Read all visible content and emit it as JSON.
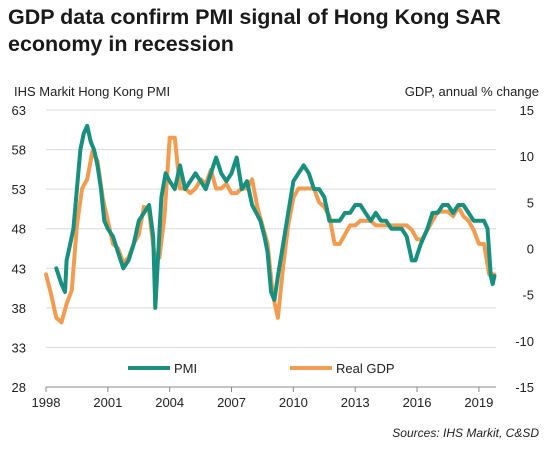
{
  "title": "GDP data confirm PMI signal of Hong Kong SAR economy in recession",
  "source": "Sources:  IHS Markit, C&SD",
  "colors": {
    "pmi": "#17907f",
    "gdp": "#f39c4f",
    "grid": "#d9d9d9",
    "axis": "#888888"
  },
  "chart_data": {
    "type": "line",
    "ylabel_left": "IHS Markit Hong Kong PMI",
    "ylabel_right": "GDP, annual % change",
    "xlim": [
      1998,
      2019.83
    ],
    "ylim_left": [
      28,
      63
    ],
    "ylim_right": [
      -15,
      15
    ],
    "x_ticks": [
      "1998",
      "2001",
      "2004",
      "2007",
      "2010",
      "2013",
      "2016",
      "2019"
    ],
    "y_ticks_left": [
      28,
      33,
      38,
      43,
      48,
      53,
      58,
      63
    ],
    "y_ticks_right": [
      -15,
      -10,
      -5,
      0,
      5,
      10,
      15
    ],
    "grid": "horizontal",
    "legend_position": "bottom-center",
    "series": [
      {
        "name": "PMI",
        "axis": "left",
        "x": [
          1998.5,
          1998.75,
          1998.92,
          1999.0,
          1999.17,
          1999.33,
          1999.5,
          1999.67,
          1999.83,
          2000.0,
          2000.17,
          2000.33,
          2000.5,
          2000.67,
          2000.83,
          2001.0,
          2001.25,
          2001.5,
          2001.75,
          2002.0,
          2002.25,
          2002.5,
          2002.75,
          2003.0,
          2003.2,
          2003.3,
          2003.45,
          2003.6,
          2003.8,
          2004.0,
          2004.25,
          2004.5,
          2004.75,
          2005.0,
          2005.25,
          2005.5,
          2005.75,
          2006.0,
          2006.25,
          2006.5,
          2006.75,
          2007.0,
          2007.25,
          2007.5,
          2007.75,
          2008.0,
          2008.2,
          2008.4,
          2008.6,
          2008.75,
          2008.92,
          2009.08,
          2009.25,
          2009.5,
          2009.75,
          2010.0,
          2010.25,
          2010.5,
          2010.75,
          2011.0,
          2011.25,
          2011.5,
          2011.75,
          2012.0,
          2012.25,
          2012.5,
          2012.75,
          2013.0,
          2013.25,
          2013.5,
          2013.75,
          2014.0,
          2014.25,
          2014.5,
          2014.75,
          2015.0,
          2015.25,
          2015.5,
          2015.75,
          2015.92,
          2016.17,
          2016.5,
          2016.75,
          2017.0,
          2017.25,
          2017.5,
          2017.75,
          2018.0,
          2018.25,
          2018.5,
          2018.75,
          2019.0,
          2019.25,
          2019.42,
          2019.58,
          2019.67,
          2019.75
        ],
        "values": [
          43,
          41,
          40,
          44,
          46,
          48,
          53,
          58,
          60,
          61,
          59,
          58,
          56,
          53,
          49,
          48,
          47,
          45,
          43,
          44,
          46,
          49,
          50,
          51,
          47,
          38,
          45,
          52,
          55,
          54,
          53,
          56,
          53,
          54,
          55,
          54,
          53,
          55,
          57,
          55,
          54,
          55,
          57,
          53,
          54,
          51,
          50,
          49,
          47,
          45,
          40,
          39,
          42,
          46,
          50,
          54,
          55,
          56,
          55,
          53,
          53,
          52,
          49,
          49,
          49,
          50,
          50,
          51,
          51,
          50,
          49,
          50,
          49,
          49,
          48,
          48,
          48,
          47,
          44,
          44,
          46,
          48,
          50,
          50,
          51,
          51,
          50,
          51,
          51,
          50,
          49,
          49,
          49,
          48,
          42,
          41,
          42
        ]
      },
      {
        "name": "Real GDP",
        "axis": "right",
        "x": [
          1998.0,
          1998.25,
          1998.5,
          1998.75,
          1999.0,
          1999.25,
          1999.5,
          1999.75,
          2000.0,
          2000.25,
          2000.5,
          2000.75,
          2001.0,
          2001.25,
          2001.5,
          2001.75,
          2002.0,
          2002.25,
          2002.5,
          2002.75,
          2003.0,
          2003.25,
          2003.5,
          2003.75,
          2004.0,
          2004.25,
          2004.5,
          2004.75,
          2005.0,
          2005.25,
          2005.5,
          2005.75,
          2006.0,
          2006.25,
          2006.5,
          2006.75,
          2007.0,
          2007.25,
          2007.5,
          2007.75,
          2008.0,
          2008.25,
          2008.5,
          2008.75,
          2009.0,
          2009.25,
          2009.5,
          2009.75,
          2010.0,
          2010.25,
          2010.5,
          2010.75,
          2011.0,
          2011.25,
          2011.5,
          2011.75,
          2012.0,
          2012.25,
          2012.5,
          2012.75,
          2013.0,
          2013.25,
          2013.5,
          2013.75,
          2014.0,
          2014.25,
          2014.5,
          2014.75,
          2015.0,
          2015.25,
          2015.5,
          2015.75,
          2016.0,
          2016.25,
          2016.5,
          2016.75,
          2017.0,
          2017.25,
          2017.5,
          2017.75,
          2018.0,
          2018.25,
          2018.5,
          2018.75,
          2019.0,
          2019.25,
          2019.5,
          2019.75
        ],
        "values": [
          -2.8,
          -5.0,
          -7.5,
          -8.0,
          -6.0,
          -4.5,
          2.5,
          6.5,
          7.5,
          10.5,
          9.5,
          5.5,
          3.0,
          0.5,
          0.0,
          -1.5,
          -1.0,
          0.5,
          1.5,
          4.5,
          4.0,
          -0.5,
          -1.0,
          3.5,
          12.0,
          12.0,
          6.5,
          6.5,
          6.0,
          6.5,
          7.5,
          7.0,
          8.5,
          6.5,
          6.5,
          7.0,
          6.0,
          6.0,
          6.5,
          6.5,
          7.5,
          4.5,
          2.5,
          0.5,
          -5.0,
          -7.5,
          -2.0,
          2.5,
          5.5,
          6.5,
          6.5,
          6.5,
          6.5,
          5.0,
          4.5,
          3.5,
          0.5,
          0.5,
          1.5,
          2.5,
          2.5,
          3.0,
          3.0,
          3.0,
          2.5,
          2.5,
          2.5,
          2.5,
          2.5,
          2.5,
          2.5,
          2.0,
          1.0,
          1.0,
          2.0,
          3.0,
          4.0,
          4.0,
          4.0,
          3.5,
          4.5,
          3.5,
          3.0,
          2.0,
          0.5,
          0.5,
          -2.8,
          -2.8
        ]
      }
    ]
  }
}
